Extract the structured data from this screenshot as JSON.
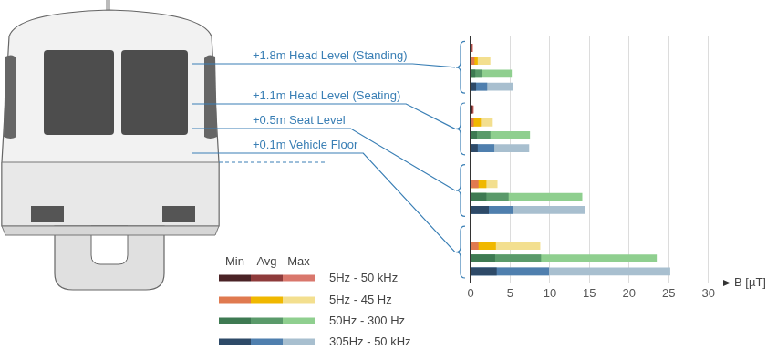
{
  "chart_data": {
    "type": "bar",
    "orientation": "horizontal",
    "x_label": "B [µT]",
    "categories": [
      "+1.8m Head Level (Standing)",
      "+1.1m Head Level (Seating)",
      "+0.5m Seat Level",
      "+0.1m Vehicle Floor"
    ],
    "xlim": [
      0,
      32
    ],
    "xticks": [
      0,
      5,
      10,
      15,
      20,
      25,
      30
    ],
    "grid": true,
    "tick_labels": "x",
    "legend": "bottom",
    "stat_names": [
      "Min",
      "Avg",
      "Max"
    ],
    "series": [
      {
        "name": "5Hz - 50 kHz",
        "colors": [
          "#4a2326",
          "#8e3b3b",
          "#d9776c"
        ],
        "min": [
          0.1,
          0.2,
          0.1,
          0.1
        ],
        "avg": [
          0.2,
          0.3,
          0.1,
          0.1
        ],
        "max": [
          0.3,
          0.4,
          0.1,
          0.1
        ]
      },
      {
        "name": "5Hz - 45 Hz",
        "colors": [
          "#e07a50",
          "#f0b800",
          "#f3df8f"
        ],
        "min": [
          0.5,
          0.4,
          1.0,
          1.0
        ],
        "avg": [
          0.9,
          1.3,
          2.0,
          3.2
        ],
        "max": [
          2.5,
          2.8,
          3.4,
          8.8
        ]
      },
      {
        "name": "50Hz - 300 Hz",
        "colors": [
          "#3e7a52",
          "#5a9a6a",
          "#8fcf8f"
        ],
        "min": [
          0.6,
          0.8,
          2.0,
          3.1
        ],
        "avg": [
          1.5,
          2.5,
          4.8,
          8.9
        ],
        "max": [
          5.2,
          7.5,
          14.1,
          23.5
        ]
      },
      {
        "name": "305Hz - 50 kHz",
        "colors": [
          "#2e4a68",
          "#4f7fae",
          "#a8bfcf"
        ],
        "min": [
          0.7,
          0.9,
          2.3,
          3.3
        ],
        "avg": [
          2.1,
          3.0,
          5.3,
          9.9
        ],
        "max": [
          5.3,
          7.4,
          14.4,
          25.2
        ]
      }
    ]
  }
}
